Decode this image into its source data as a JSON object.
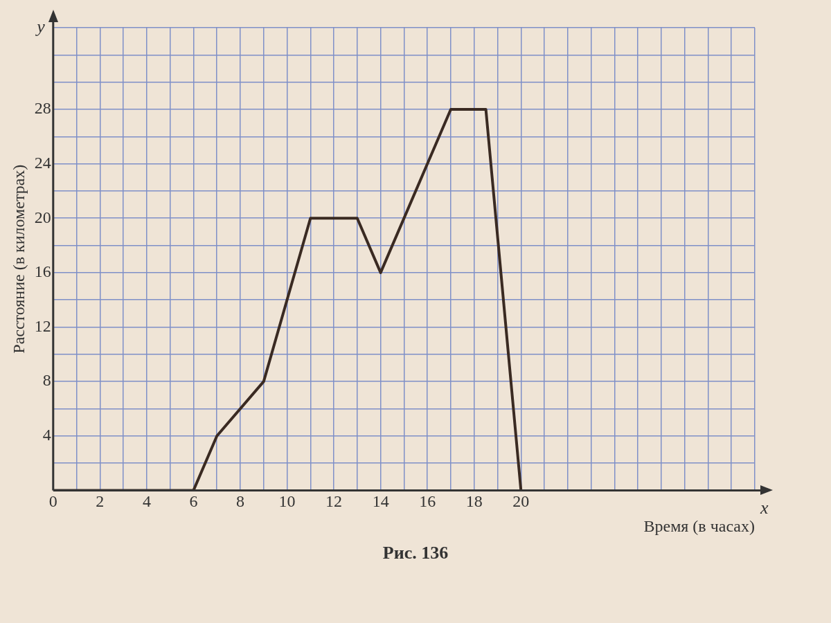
{
  "chart_data": {
    "type": "line",
    "title": "Рис. 136",
    "xlabel": "Время (в часах)",
    "ylabel": "Расстояние (в километрах)",
    "annotations": [
      "x",
      "y"
    ],
    "x": [
      0,
      6,
      7,
      9,
      11,
      13,
      14,
      17,
      18.5,
      20
    ],
    "series": [
      {
        "color": "#3a2a22",
        "values": [
          0,
          0,
          4,
          8,
          20,
          20,
          16,
          28,
          28,
          0
        ]
      }
    ],
    "xlim": [
      0,
      30
    ],
    "xticks": [
      0,
      {
        "value": 1,
        "label": null
      },
      2,
      {
        "value": 3,
        "label": null
      },
      4,
      {
        "value": 5,
        "label": null
      },
      6,
      {
        "value": 7,
        "label": null
      },
      8,
      {
        "value": 9,
        "label": null
      },
      10,
      {
        "value": 11,
        "label": null
      },
      12,
      {
        "value": 13,
        "label": null
      },
      14,
      {
        "value": 15,
        "label": null
      },
      16,
      {
        "value": 17,
        "label": null
      },
      18,
      {
        "value": 19,
        "label": null
      },
      20,
      {
        "value": 21,
        "label": null
      },
      {
        "value": 22,
        "label": null
      },
      {
        "value": 23,
        "label": null
      },
      {
        "value": 24,
        "label": null
      },
      {
        "value": 25,
        "label": null
      },
      {
        "value": 26,
        "label": null
      },
      {
        "value": 27,
        "label": null
      },
      {
        "value": 28,
        "label": null
      },
      {
        "value": 29,
        "label": null
      },
      {
        "value": 30,
        "label": null
      }
    ],
    "ylim": [
      0,
      34
    ],
    "yticks": [
      {
        "value": 0,
        "label": null
      },
      {
        "value": 2,
        "label": null
      },
      4,
      {
        "value": 6,
        "label": null
      },
      8,
      {
        "value": 10,
        "label": null
      },
      12,
      {
        "value": 14,
        "label": null
      },
      16,
      {
        "value": 18,
        "label": null
      },
      20,
      {
        "value": 22,
        "label": null
      },
      24,
      {
        "value": 26,
        "label": null
      },
      28,
      {
        "value": 30,
        "label": null
      },
      {
        "value": 32,
        "label": null
      },
      {
        "value": 34,
        "label": null
      }
    ],
    "grid": true,
    "legend": false,
    "marker": "none",
    "line_style": "solid"
  }
}
